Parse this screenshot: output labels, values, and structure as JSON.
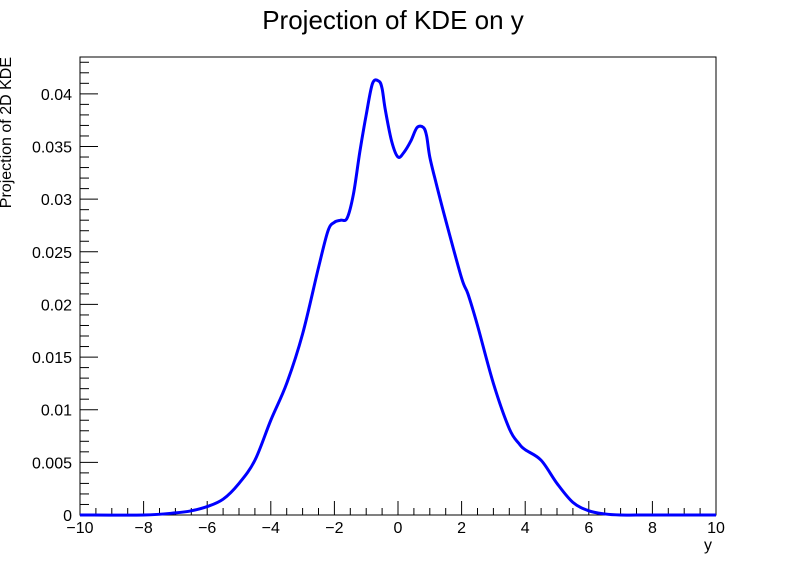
{
  "chart_data": {
    "type": "line",
    "title": "Projection of KDE on y",
    "xlabel": "y",
    "ylabel": "Projection of 2D KDE",
    "xlim": [
      -10,
      10
    ],
    "ylim": [
      0,
      0.0435
    ],
    "x_ticks": [
      -10,
      -8,
      -6,
      -4,
      -2,
      0,
      2,
      4,
      6,
      8,
      10
    ],
    "x_tick_labels": [
      "−10",
      "−8",
      "−6",
      "−4",
      "−2",
      "0",
      "2",
      "4",
      "6",
      "8",
      "10"
    ],
    "y_ticks": [
      0,
      0.005,
      0.01,
      0.015,
      0.02,
      0.025,
      0.03,
      0.035,
      0.04
    ],
    "y_tick_labels": [
      "0",
      "0.005",
      "0.01",
      "0.015",
      "0.02",
      "0.025",
      "0.03",
      "0.035",
      "0.04"
    ],
    "grid": false,
    "line_color": "#0000ff",
    "series": [
      {
        "x": [
          -10,
          -8,
          -7,
          -6.5,
          -6,
          -5.5,
          -5,
          -4.5,
          -4,
          -3.5,
          -3,
          -2.5,
          -2.2,
          -2,
          -1.8,
          -1.6,
          -1.4,
          -1.2,
          -1,
          -0.8,
          -0.6,
          -0.5,
          -0.4,
          -0.2,
          0,
          0.2,
          0.4,
          0.6,
          0.8,
          0.9,
          1,
          1.2,
          1.5,
          2,
          2.2,
          2.5,
          3,
          3.5,
          3.8,
          4,
          4.5,
          5,
          5.5,
          6,
          6.5,
          7,
          8,
          10
        ],
        "y": [
          0,
          0,
          0.0002,
          0.0004,
          0.0008,
          0.0015,
          0.003,
          0.0052,
          0.009,
          0.0125,
          0.0172,
          0.0235,
          0.027,
          0.0278,
          0.028,
          0.0282,
          0.0305,
          0.0345,
          0.038,
          0.041,
          0.0412,
          0.0405,
          0.0385,
          0.0355,
          0.034,
          0.0345,
          0.0355,
          0.0368,
          0.0368,
          0.036,
          0.034,
          0.0315,
          0.028,
          0.0225,
          0.021,
          0.018,
          0.0125,
          0.0082,
          0.0068,
          0.0062,
          0.0052,
          0.003,
          0.0012,
          0.0004,
          0.0001,
          0,
          0,
          0
        ]
      }
    ]
  }
}
